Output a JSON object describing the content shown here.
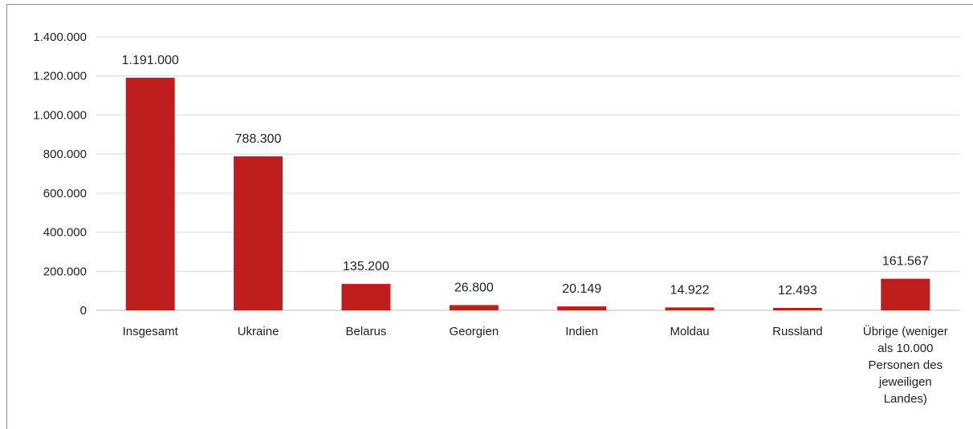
{
  "chart_data": {
    "type": "bar",
    "categories": [
      [
        "Insgesamt"
      ],
      [
        "Ukraine"
      ],
      [
        "Belarus"
      ],
      [
        "Georgien"
      ],
      [
        "Indien"
      ],
      [
        "Moldau"
      ],
      [
        "Russland"
      ],
      [
        "Übrige (weniger",
        "als 10.000",
        "Personen des",
        "jeweiligen",
        "Landes)"
      ]
    ],
    "values": [
      1191000,
      788300,
      135200,
      26800,
      20149,
      14922,
      12493,
      161567
    ],
    "value_labels": [
      "1.191.000",
      "788.300",
      "135.200",
      "26.800",
      "20.149",
      "14.922",
      "12.493",
      "161.567"
    ],
    "ylim": [
      0,
      1400000
    ],
    "yticks": [
      0,
      200000,
      400000,
      600000,
      800000,
      1000000,
      1200000,
      1400000
    ],
    "ytick_labels": [
      "0",
      "200.000",
      "400.000",
      "600.000",
      "800.000",
      "1.000.000",
      "1.200.000",
      "1.400.000"
    ],
    "grid": true,
    "bar_color": "#be1e1e",
    "grid_color": "#d9d9d9",
    "axis_color": "#bfbfbf",
    "title": "",
    "xlabel": "",
    "ylabel": ""
  }
}
